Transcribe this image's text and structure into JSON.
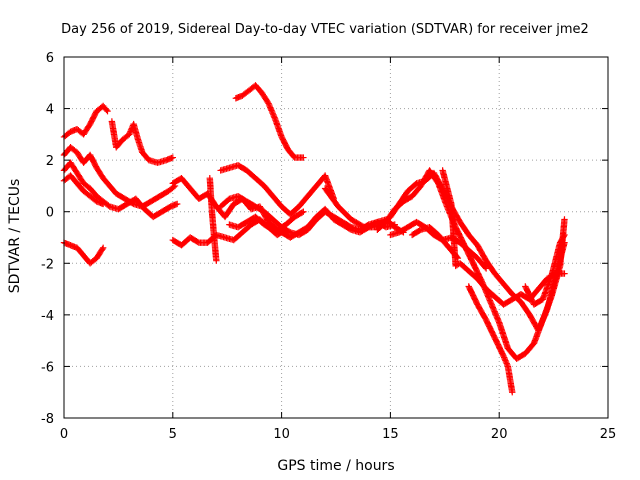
{
  "chart_data": {
    "type": "scatter",
    "title": "Day 256 of 2019, Sidereal Day-to-day VTEC variation (SDTVAR) for receiver jme2",
    "xlabel": "GPS time / hours",
    "ylabel": "SDTVAR / TECUs",
    "xlim": [
      0,
      25
    ],
    "ylim": [
      -8,
      6
    ],
    "xticks": [
      0,
      5,
      10,
      15,
      20,
      25
    ],
    "yticks": [
      -8,
      -6,
      -4,
      -2,
      0,
      2,
      4,
      6
    ],
    "grid": true,
    "marker": "+",
    "color": "#ff0000",
    "series": [
      {
        "x": [
          0,
          0.3,
          0.6,
          0.9,
          1.2,
          1.5,
          1.8,
          2.0
        ],
        "y": [
          2.9,
          3.1,
          3.2,
          3.0,
          3.4,
          3.9,
          4.1,
          3.9
        ]
      },
      {
        "x": [
          0,
          0.3,
          0.6,
          0.9,
          1.2,
          1.5,
          1.8,
          2.1,
          2.4,
          2.8,
          3.2,
          3.6,
          4.0,
          4.4,
          4.8,
          5.1
        ],
        "y": [
          2.2,
          2.5,
          2.3,
          1.9,
          2.2,
          1.7,
          1.3,
          1.0,
          0.7,
          0.5,
          0.3,
          0.2,
          0.4,
          0.6,
          0.8,
          1.0
        ]
      },
      {
        "x": [
          0,
          0.3,
          0.6,
          0.9,
          1.2,
          1.5,
          1.8,
          2.1,
          2.5,
          2.9,
          3.3,
          3.7,
          4.1,
          4.5,
          4.9,
          5.2
        ],
        "y": [
          1.6,
          1.9,
          1.5,
          1.1,
          0.9,
          0.6,
          0.4,
          0.2,
          0.1,
          0.3,
          0.5,
          0.1,
          -0.2,
          0.0,
          0.2,
          0.3
        ]
      },
      {
        "x": [
          0,
          0.3,
          0.6,
          0.9,
          1.2,
          1.5,
          1.8
        ],
        "y": [
          1.2,
          1.4,
          1.1,
          0.8,
          0.6,
          0.4,
          0.3
        ]
      },
      {
        "x": [
          0,
          0.3,
          0.6,
          0.9,
          1.2,
          1.5,
          1.8
        ],
        "y": [
          -1.2,
          -1.3,
          -1.4,
          -1.7,
          -2.0,
          -1.8,
          -1.4
        ]
      },
      {
        "x": [
          2.2,
          2.4,
          2.7,
          3.0,
          3.2,
          3.4,
          3.6,
          3.9,
          4.3,
          4.7,
          5.0
        ],
        "y": [
          3.5,
          2.5,
          2.8,
          3.0,
          3.4,
          2.8,
          2.3,
          2.0,
          1.9,
          2.0,
          2.1
        ]
      },
      {
        "x": [
          5.0,
          5.4,
          5.8,
          6.2,
          6.6,
          7.0,
          7.4,
          7.8,
          8.2,
          8.6,
          9.0,
          9.4,
          9.8,
          10.2
        ],
        "y": [
          -1.1,
          -1.3,
          -1.0,
          -1.2,
          -1.2,
          -0.9,
          -1.0,
          -1.1,
          -0.8,
          -0.5,
          -0.3,
          -0.6,
          -0.9,
          -0.7
        ]
      },
      {
        "x": [
          5.0,
          5.4,
          5.8,
          6.2,
          6.6,
          7.0,
          7.4,
          7.8,
          8.2,
          8.6,
          9.0,
          9.4,
          9.8,
          10.2,
          10.6,
          11.0
        ],
        "y": [
          1.1,
          1.3,
          0.9,
          0.5,
          0.7,
          0.2,
          -0.2,
          0.3,
          0.5,
          0.1,
          0.2,
          -0.4,
          -0.7,
          -0.5,
          -0.2,
          0.0
        ]
      },
      {
        "x": [
          6.7,
          6.8,
          6.9,
          7.0
        ],
        "y": [
          1.3,
          0.0,
          -1.0,
          -1.9
        ]
      },
      {
        "x": [
          7.2,
          7.6,
          8.0,
          8.4,
          8.8,
          9.2,
          9.6,
          10.0,
          10.4,
          10.8,
          11.2,
          11.6,
          12.0,
          12.4
        ],
        "y": [
          1.6,
          1.7,
          1.8,
          1.6,
          1.3,
          1.0,
          0.6,
          0.2,
          -0.1,
          0.2,
          0.6,
          1.0,
          1.4,
          0.5
        ]
      },
      {
        "x": [
          7.2,
          7.6,
          8.0,
          8.4,
          8.8,
          9.2,
          9.6,
          10.0,
          10.4,
          10.8,
          11.2,
          11.6,
          12.0,
          12.4,
          12.8,
          13.2,
          13.6,
          14.0,
          14.4,
          14.8,
          15.2
        ],
        "y": [
          0.2,
          0.5,
          0.6,
          0.4,
          0.2,
          0.0,
          -0.3,
          -0.6,
          -0.8,
          -0.9,
          -0.7,
          -0.3,
          0.0,
          -0.2,
          -0.4,
          -0.6,
          -0.7,
          -0.5,
          -0.4,
          -0.6,
          -0.5
        ]
      },
      {
        "x": [
          7.6,
          8.0,
          8.4,
          8.8,
          9.2,
          9.6,
          10.0,
          10.4,
          10.8,
          11.2,
          11.6,
          12.0,
          12.4,
          12.8,
          13.2,
          13.6,
          14.0,
          14.4,
          14.8,
          15.2,
          15.6
        ],
        "y": [
          -0.5,
          -0.6,
          -0.4,
          -0.2,
          -0.5,
          -0.7,
          -0.8,
          -1.0,
          -0.8,
          -0.6,
          -0.2,
          0.1,
          -0.3,
          -0.5,
          -0.7,
          -0.8,
          -0.6,
          -0.4,
          -0.3,
          -0.6,
          -0.8
        ]
      },
      {
        "x": [
          7.9,
          8.2,
          8.5,
          8.8,
          9.1,
          9.4,
          9.7,
          10.0,
          10.3,
          10.6,
          11.0
        ],
        "y": [
          4.4,
          4.5,
          4.7,
          4.9,
          4.6,
          4.2,
          3.6,
          2.9,
          2.4,
          2.1,
          2.1
        ]
      },
      {
        "x": [
          12.0,
          12.6,
          13.2,
          13.8,
          14.2,
          14.6,
          15.0,
          15.4,
          15.8,
          16.2,
          16.6,
          17.0,
          17.4,
          17.8,
          18.2,
          18.6,
          19.0,
          19.4,
          19.8,
          20.2,
          20.6,
          21.0,
          21.4,
          21.8,
          22.2,
          22.6,
          23.0
        ],
        "y": [
          0.9,
          0.2,
          -0.3,
          -0.6,
          -0.6,
          -0.5,
          -0.2,
          0.3,
          0.8,
          1.1,
          1.2,
          1.5,
          0.9,
          0.2,
          -0.4,
          -0.9,
          -1.3,
          -1.9,
          -2.4,
          -2.8,
          -3.2,
          -3.5,
          -4.0,
          -4.6,
          -3.8,
          -2.5,
          -1.2
        ]
      },
      {
        "x": [
          14.4,
          14.8,
          15.2,
          15.6,
          16.0,
          16.4,
          16.8,
          17.2,
          17.6,
          18.0,
          18.4,
          18.8,
          19.2,
          19.6,
          20.0,
          20.4,
          20.8,
          21.2,
          21.6,
          22.0,
          22.4,
          22.8,
          23.0
        ],
        "y": [
          -0.7,
          -0.4,
          0.1,
          0.4,
          0.6,
          1.0,
          1.6,
          1.1,
          0.2,
          -0.6,
          -1.3,
          -2.0,
          -2.7,
          -3.5,
          -4.3,
          -5.3,
          -5.7,
          -5.5,
          -5.1,
          -4.2,
          -3.3,
          -2.1,
          -0.3
        ]
      },
      {
        "x": [
          15.0,
          15.4,
          15.8,
          16.2,
          16.6,
          17.0,
          17.4,
          17.8,
          18.2,
          18.6,
          19.0,
          19.4
        ],
        "y": [
          -0.9,
          -0.8,
          -0.6,
          -0.4,
          -0.6,
          -0.9,
          -1.1,
          -1.0,
          -1.2,
          -1.5,
          -1.8,
          -2.2
        ]
      },
      {
        "x": [
          16.0,
          16.4,
          16.8,
          17.2,
          17.5,
          17.8,
          18.1
        ],
        "y": [
          -0.9,
          -0.7,
          -0.6,
          -0.9,
          -1.2,
          -1.5,
          -1.8
        ]
      },
      {
        "x": [
          17.4,
          17.8,
          18.0,
          18.2,
          18.6,
          19.0,
          19.4,
          19.8,
          20.2,
          20.6,
          21.0,
          21.4,
          21.8,
          22.2,
          22.6,
          23.0
        ],
        "y": [
          1.6,
          0.3,
          -2.1,
          -2.0,
          -2.3,
          -2.6,
          -3.0,
          -3.3,
          -3.6,
          -3.4,
          -3.2,
          -3.4,
          -3.0,
          -2.6,
          -2.4,
          -2.4
        ]
      },
      {
        "x": [
          18.6,
          19.0,
          19.4,
          19.8,
          20.2,
          20.4,
          20.5,
          20.6
        ],
        "y": [
          -2.9,
          -3.6,
          -4.2,
          -4.9,
          -5.6,
          -6.0,
          -6.5,
          -7.0
        ]
      },
      {
        "x": [
          21.2,
          21.6,
          22.0,
          22.4,
          22.8,
          23.0
        ],
        "y": [
          -2.9,
          -3.6,
          -3.4,
          -2.5,
          -1.2,
          -0.9
        ]
      }
    ]
  }
}
